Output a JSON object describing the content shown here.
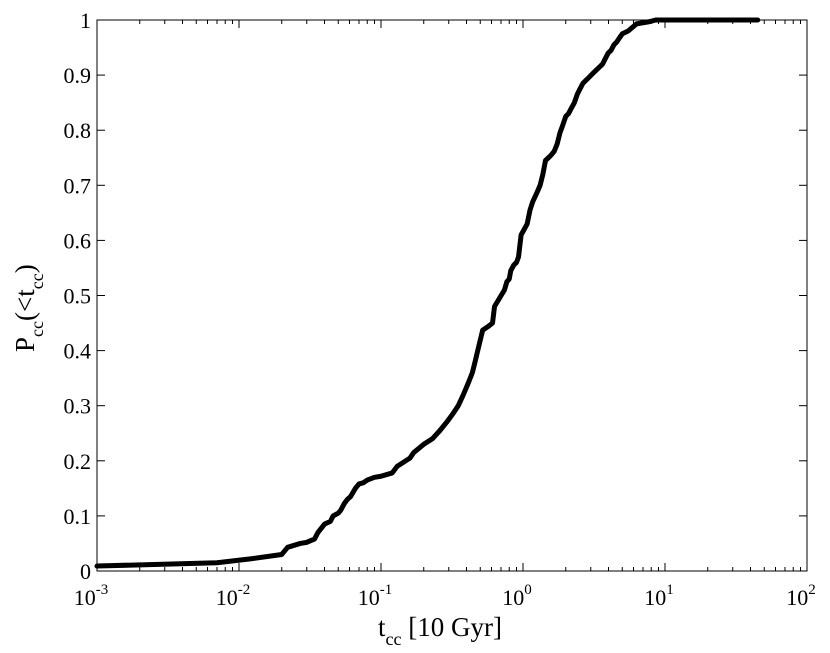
{
  "chart_data": {
    "type": "line",
    "x_scale": "log",
    "xlim": [
      0.001,
      100
    ],
    "ylim": [
      0,
      1
    ],
    "xlabel": {
      "main": "t",
      "sub": "cc",
      "rest": " [10 Gyr]"
    },
    "ylabel": {
      "main": "P",
      "sub": "cc",
      "mid": "(<t",
      "sub2": "cc",
      "end": ")"
    },
    "x_ticks": [
      {
        "base": "10",
        "exp": "-3",
        "value": 0.001
      },
      {
        "base": "10",
        "exp": "-2",
        "value": 0.01
      },
      {
        "base": "10",
        "exp": "-1",
        "value": 0.1
      },
      {
        "base": "10",
        "exp": "0",
        "value": 1
      },
      {
        "base": "10",
        "exp": "1",
        "value": 10
      },
      {
        "base": "10",
        "exp": "2",
        "value": 100
      }
    ],
    "y_ticks": [
      "0",
      "0.1",
      "0.2",
      "0.3",
      "0.4",
      "0.5",
      "0.6",
      "0.7",
      "0.8",
      "0.9",
      "1"
    ],
    "grid": false,
    "line_color": "#000000",
    "series": [
      {
        "x": [
          0.001,
          0.007,
          0.012,
          0.02,
          0.022,
          0.027,
          0.03,
          0.034,
          0.036,
          0.04,
          0.044,
          0.046,
          0.05,
          0.052,
          0.055,
          0.058,
          0.061,
          0.066,
          0.07,
          0.075,
          0.08,
          0.09,
          0.1,
          0.12,
          0.13,
          0.16,
          0.17,
          0.2,
          0.23,
          0.26,
          0.29,
          0.32,
          0.35,
          0.38,
          0.41,
          0.44,
          0.46,
          0.48,
          0.52,
          0.54,
          0.57,
          0.59,
          0.61,
          0.63,
          0.74,
          0.77,
          0.8,
          0.82,
          0.86,
          0.9,
          0.93,
          0.97,
          1.02,
          1.07,
          1.12,
          1.17,
          1.22,
          1.27,
          1.32,
          1.38,
          1.44,
          1.51,
          1.58,
          1.66,
          1.74,
          1.82,
          1.91,
          2.0,
          2.09,
          2.19,
          2.3,
          2.41,
          2.52,
          2.64,
          2.76,
          2.89,
          3.02,
          3.16,
          3.31,
          3.47,
          3.63,
          3.8,
          3.98,
          4.17,
          4.37,
          4.57,
          4.79,
          5.01,
          5.5,
          6.3,
          7.0,
          7.8,
          8.6,
          9.5,
          10.5,
          11.5,
          12.6,
          13.8,
          15.2,
          16.6,
          45
        ],
        "y": [
          0.009,
          0.015,
          0.022,
          0.03,
          0.043,
          0.05,
          0.052,
          0.058,
          0.07,
          0.085,
          0.09,
          0.1,
          0.105,
          0.11,
          0.122,
          0.13,
          0.135,
          0.15,
          0.158,
          0.16,
          0.165,
          0.17,
          0.172,
          0.178,
          0.19,
          0.205,
          0.215,
          0.23,
          0.24,
          0.255,
          0.27,
          0.285,
          0.3,
          0.32,
          0.34,
          0.36,
          0.38,
          0.4,
          0.437,
          0.44,
          0.444,
          0.447,
          0.45,
          0.48,
          0.51,
          0.525,
          0.53,
          0.545,
          0.555,
          0.56,
          0.57,
          0.61,
          0.62,
          0.63,
          0.655,
          0.67,
          0.68,
          0.69,
          0.7,
          0.72,
          0.745,
          0.75,
          0.755,
          0.762,
          0.775,
          0.795,
          0.81,
          0.825,
          0.83,
          0.84,
          0.85,
          0.865,
          0.875,
          0.885,
          0.89,
          0.895,
          0.9,
          0.905,
          0.91,
          0.915,
          0.92,
          0.93,
          0.94,
          0.945,
          0.955,
          0.96,
          0.968,
          0.975,
          0.98,
          0.993,
          0.995,
          0.997,
          1.0,
          1.0,
          1.0,
          1.0,
          1.0,
          1.0,
          1.0,
          1.0,
          1.0
        ]
      }
    ]
  }
}
